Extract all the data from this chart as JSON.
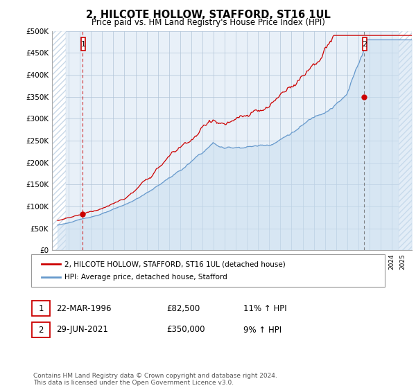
{
  "title": "2, HILCOTE HOLLOW, STAFFORD, ST16 1UL",
  "subtitle": "Price paid vs. HM Land Registry's House Price Index (HPI)",
  "ylim": [
    0,
    500000
  ],
  "yticks": [
    0,
    50000,
    100000,
    150000,
    200000,
    250000,
    300000,
    350000,
    400000,
    450000,
    500000
  ],
  "ytick_labels": [
    "£0",
    "£50K",
    "£100K",
    "£150K",
    "£200K",
    "£250K",
    "£300K",
    "£350K",
    "£400K",
    "£450K",
    "£500K"
  ],
  "xlim_start": 1993.5,
  "xlim_end": 2025.8,
  "hpi_line_color": "#6699cc",
  "hpi_fill_color": "#c8ddf0",
  "price_color": "#cc0000",
  "background_color": "#ffffff",
  "chart_bg_color": "#e8f0f8",
  "grid_color": "#b0c4d8",
  "hatch_color": "#c8d8e8",
  "sale1_x": 1996.22,
  "sale1_y": 82500,
  "sale2_x": 2021.49,
  "sale2_y": 350000,
  "legend_entry1": "2, HILCOTE HOLLOW, STAFFORD, ST16 1UL (detached house)",
  "legend_entry2": "HPI: Average price, detached house, Stafford",
  "ann1_date": "22-MAR-1996",
  "ann1_price": "£82,500",
  "ann1_hpi": "11% ↑ HPI",
  "ann2_date": "29-JUN-2021",
  "ann2_price": "£350,000",
  "ann2_hpi": "9% ↑ HPI",
  "footer": "Contains HM Land Registry data © Crown copyright and database right 2024.\nThis data is licensed under the Open Government Licence v3.0."
}
